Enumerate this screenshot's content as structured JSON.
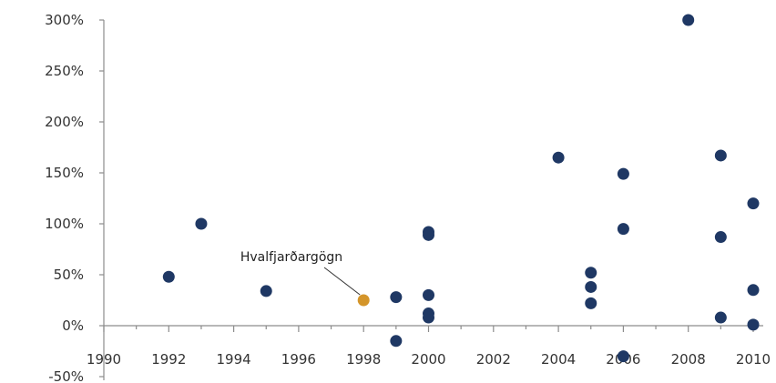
{
  "chart_data": {
    "type": "scatter",
    "title": "",
    "xlabel": "",
    "ylabel": "",
    "xlim": [
      1990,
      2010
    ],
    "ylim": [
      -50,
      300
    ],
    "grid": false,
    "x_ticks": [
      1990,
      1992,
      1994,
      1996,
      1998,
      2000,
      2002,
      2004,
      2006,
      2008,
      2010
    ],
    "x_tick_labels": [
      "1990",
      "1992",
      "1994",
      "1996",
      "1998",
      "2000",
      "2002",
      "2004",
      "2006",
      "2008",
      "2010"
    ],
    "y_ticks": [
      -50,
      0,
      50,
      100,
      150,
      200,
      250,
      300
    ],
    "y_tick_labels": [
      "-50%",
      "0%",
      "50%",
      "100%",
      "150%",
      "200%",
      "250%",
      "300%"
    ],
    "colors": {
      "points": "#1f3864",
      "highlight": "#d4952a",
      "axis": "#8c8c8c"
    },
    "series": [
      {
        "points": [
          {
            "x": 1992,
            "y": 48
          },
          {
            "x": 1993,
            "y": 100
          },
          {
            "x": 1995,
            "y": 34
          },
          {
            "x": 1999,
            "y": 28
          },
          {
            "x": 1999,
            "y": -15
          },
          {
            "x": 2000,
            "y": 92
          },
          {
            "x": 2000,
            "y": 89
          },
          {
            "x": 2000,
            "y": 30
          },
          {
            "x": 2000,
            "y": 12
          },
          {
            "x": 2000,
            "y": 8
          },
          {
            "x": 2004,
            "y": 165
          },
          {
            "x": 2005,
            "y": 52
          },
          {
            "x": 2005,
            "y": 38
          },
          {
            "x": 2005,
            "y": 22
          },
          {
            "x": 2006,
            "y": 149
          },
          {
            "x": 2006,
            "y": 95
          },
          {
            "x": 2006,
            "y": -30
          },
          {
            "x": 2008,
            "y": 300
          },
          {
            "x": 2009,
            "y": 167
          },
          {
            "x": 2009,
            "y": 87
          },
          {
            "x": 2009,
            "y": 8
          },
          {
            "x": 2010,
            "y": 120
          },
          {
            "x": 2010,
            "y": 35
          },
          {
            "x": 2010,
            "y": 1
          }
        ]
      }
    ],
    "highlight": {
      "x": 1998,
      "y": 25,
      "label": "Hvalfjarðargögn"
    }
  }
}
